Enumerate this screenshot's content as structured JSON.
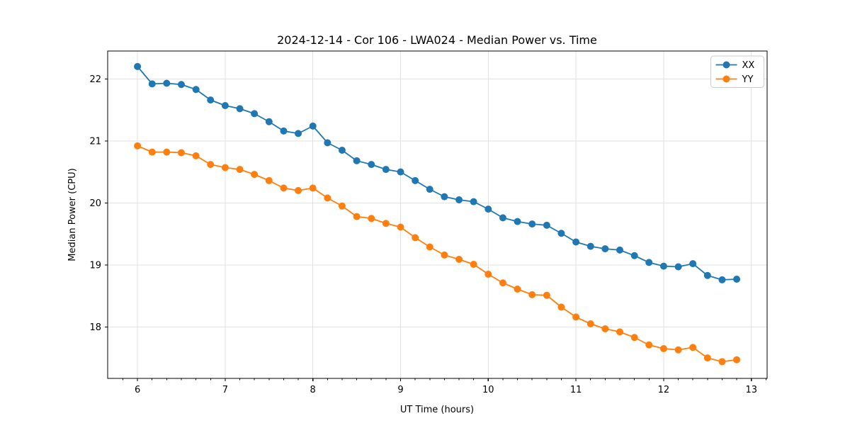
{
  "chart_data": {
    "type": "line",
    "title": "2024-12-14 - Cor 106 - LWA024 - Median Power vs. Time",
    "xlabel": "UT Time (hours)",
    "ylabel": "Median Power (CPU)",
    "xlim": [
      5.66,
      13.18
    ],
    "ylim": [
      17.17,
      22.45
    ],
    "xticks": [
      6,
      7,
      8,
      9,
      10,
      11,
      12,
      13
    ],
    "yticks": [
      18,
      19,
      20,
      21,
      22
    ],
    "x_minor_tick_step": 0.166667,
    "grid": true,
    "grid_color": "#e2e2e2",
    "legend_position": "upper right",
    "legend_labels": [
      "XX",
      "YY"
    ],
    "x": [
      6.0,
      6.167,
      6.333,
      6.5,
      6.667,
      6.833,
      7.0,
      7.167,
      7.333,
      7.5,
      7.667,
      7.833,
      8.0,
      8.167,
      8.333,
      8.5,
      8.667,
      8.833,
      9.0,
      9.167,
      9.333,
      9.5,
      9.667,
      9.833,
      10.0,
      10.167,
      10.333,
      10.5,
      10.667,
      10.833,
      11.0,
      11.167,
      11.333,
      11.5,
      11.667,
      11.833,
      12.0,
      12.167,
      12.333,
      12.5,
      12.667,
      12.833
    ],
    "series": [
      {
        "name": "XX",
        "color": "#1f77b4",
        "values": [
          22.2,
          21.92,
          21.93,
          21.91,
          21.83,
          21.66,
          21.57,
          21.52,
          21.44,
          21.31,
          21.16,
          21.12,
          21.24,
          20.97,
          20.85,
          20.68,
          20.62,
          20.54,
          20.5,
          20.36,
          20.22,
          20.1,
          20.05,
          20.02,
          19.9,
          19.76,
          19.7,
          19.66,
          19.64,
          19.51,
          19.37,
          19.3,
          19.26,
          19.24,
          19.15,
          19.04,
          18.98,
          18.97,
          19.02,
          18.83,
          18.76,
          18.77
        ]
      },
      {
        "name": "YY",
        "color": "#ff7f0e",
        "values": [
          20.92,
          20.82,
          20.82,
          20.81,
          20.76,
          20.62,
          20.57,
          20.54,
          20.46,
          20.36,
          20.24,
          20.2,
          20.24,
          20.08,
          19.95,
          19.78,
          19.75,
          19.67,
          19.61,
          19.44,
          19.29,
          19.16,
          19.09,
          19.01,
          18.85,
          18.71,
          18.61,
          18.52,
          18.51,
          18.32,
          18.16,
          18.05,
          17.97,
          17.92,
          17.83,
          17.71,
          17.65,
          17.63,
          17.67,
          17.5,
          17.44,
          17.47
        ]
      }
    ]
  }
}
